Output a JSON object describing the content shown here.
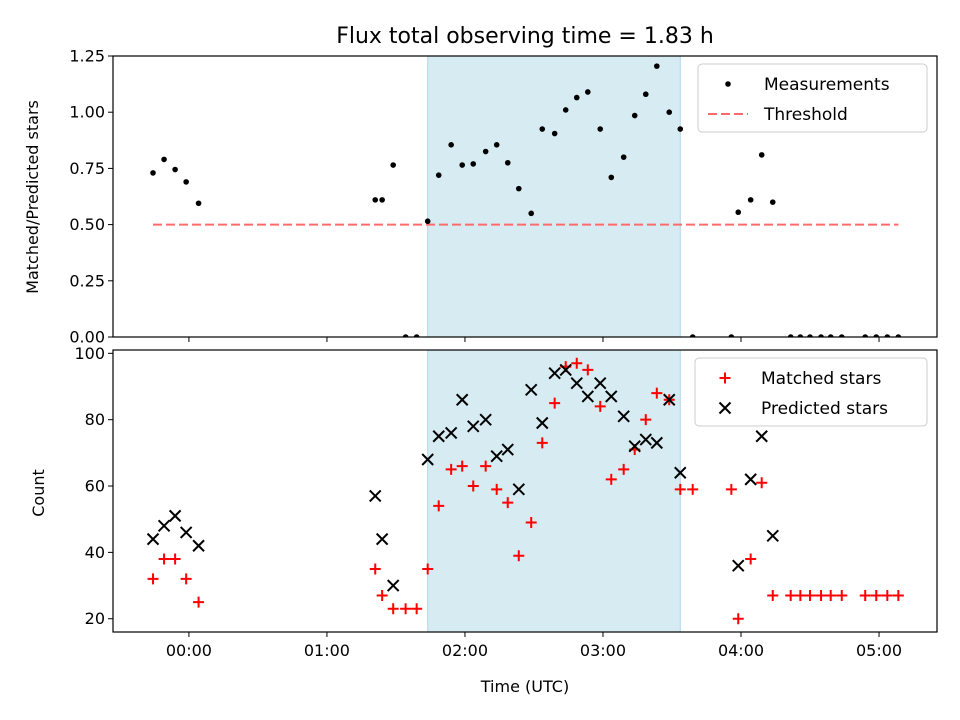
{
  "chart_data": [
    {
      "type": "scatter",
      "title": "Flux total observing time = 1.83 h",
      "xlabel": "",
      "ylabel": "Matched/Predicted stars",
      "xlim": [
        -0.55,
        5.42
      ],
      "ylim": [
        0,
        1.25
      ],
      "yticks": [
        0,
        0.25,
        0.5,
        0.75,
        1.0,
        1.25
      ],
      "ytick_labels": [
        "0.00",
        "0.25",
        "0.50",
        "0.75",
        "1.00",
        "1.25"
      ],
      "xticks": [
        0,
        1,
        2,
        3,
        4,
        5
      ],
      "shaded_region": {
        "x0": 1.73,
        "x1": 3.56,
        "color": "#add8e6"
      },
      "threshold": {
        "y": 0.5,
        "x0": -0.26,
        "x1": 5.14,
        "color": "#ff6b6b"
      },
      "legend": [
        "Measurements",
        "Threshold"
      ],
      "legend_position": "top-right",
      "series": [
        {
          "name": "Measurements",
          "x": [
            -0.26,
            -0.18,
            -0.1,
            -0.02,
            0.07,
            1.35,
            1.4,
            1.48,
            1.57,
            1.65,
            1.73,
            1.81,
            1.9,
            1.98,
            2.06,
            2.15,
            2.23,
            2.31,
            2.39,
            2.48,
            2.56,
            2.65,
            2.73,
            2.81,
            2.89,
            2.98,
            3.06,
            3.15,
            3.23,
            3.31,
            3.39,
            3.48,
            3.56,
            3.65,
            3.93,
            3.98,
            4.07,
            4.15,
            4.23,
            4.36,
            4.43,
            4.5,
            4.58,
            4.65,
            4.73,
            4.9,
            4.98,
            5.06,
            5.14
          ],
          "y": [
            0.73,
            0.79,
            0.745,
            0.69,
            0.595,
            0.61,
            0.61,
            0.765,
            0.0,
            0.0,
            0.515,
            0.72,
            0.855,
            0.765,
            0.77,
            0.825,
            0.855,
            0.775,
            0.66,
            0.55,
            0.925,
            0.905,
            1.01,
            1.065,
            1.09,
            0.925,
            0.71,
            0.8,
            0.985,
            1.08,
            1.205,
            1.0,
            0.925,
            0.0,
            0.0,
            0.555,
            0.61,
            0.81,
            0.6,
            0.0,
            0.0,
            0.0,
            0.0,
            0.0,
            0.0,
            0.0,
            0.0,
            0.0,
            0.0
          ]
        }
      ]
    },
    {
      "type": "scatter",
      "title": "",
      "xlabel": "Time (UTC)",
      "ylabel": "Count",
      "xlim": [
        -0.55,
        5.42
      ],
      "ylim": [
        16,
        101
      ],
      "yticks": [
        20,
        40,
        60,
        80,
        100
      ],
      "ytick_labels": [
        "20",
        "40",
        "60",
        "80",
        "100"
      ],
      "xticks": [
        0,
        1,
        2,
        3,
        4,
        5
      ],
      "xtick_labels": [
        "00:00",
        "01:00",
        "02:00",
        "03:00",
        "04:00",
        "05:00"
      ],
      "shaded_region": {
        "x0": 1.73,
        "x1": 3.56,
        "color": "#add8e6"
      },
      "legend": [
        "Matched stars",
        "Predicted stars"
      ],
      "legend_position": "top-right",
      "series": [
        {
          "name": "Matched stars",
          "color": "#ff0000",
          "x": [
            -0.26,
            -0.18,
            -0.1,
            -0.02,
            0.07,
            1.35,
            1.4,
            1.48,
            1.57,
            1.65,
            1.73,
            1.81,
            1.9,
            1.98,
            2.06,
            2.15,
            2.23,
            2.31,
            2.39,
            2.48,
            2.56,
            2.65,
            2.73,
            2.81,
            2.89,
            2.98,
            3.06,
            3.15,
            3.23,
            3.31,
            3.39,
            3.48,
            3.56,
            3.65,
            3.93,
            3.98,
            4.07,
            4.15,
            4.23,
            4.36,
            4.43,
            4.5,
            4.58,
            4.65,
            4.73,
            4.9,
            4.98,
            5.06,
            5.14
          ],
          "y": [
            32,
            38,
            38,
            32,
            25,
            35,
            27,
            23,
            23,
            23,
            35,
            54,
            65,
            66,
            60,
            66,
            59,
            55,
            39,
            49,
            73,
            85,
            96,
            97,
            95,
            84,
            62,
            65,
            71,
            80,
            88,
            86,
            59,
            59,
            59,
            20,
            38,
            61,
            27,
            27,
            27,
            27,
            27,
            27,
            27,
            27,
            27,
            27,
            27
          ]
        },
        {
          "name": "Predicted stars",
          "color": "#000000",
          "x": [
            -0.26,
            -0.18,
            -0.1,
            -0.02,
            0.07,
            1.35,
            1.4,
            1.48,
            1.73,
            1.81,
            1.9,
            1.98,
            2.06,
            2.15,
            2.23,
            2.31,
            2.39,
            2.48,
            2.56,
            2.65,
            2.73,
            2.81,
            2.89,
            2.98,
            3.06,
            3.15,
            3.23,
            3.31,
            3.39,
            3.48,
            3.56,
            3.98,
            4.07,
            4.15,
            4.23
          ],
          "y": [
            44,
            48,
            51,
            46,
            42,
            57,
            44,
            30,
            68,
            75,
            76,
            86,
            78,
            80,
            69,
            71,
            59,
            89,
            79,
            94,
            95,
            91,
            87,
            91,
            87,
            81,
            72,
            74,
            73,
            86,
            64,
            36,
            62,
            75,
            45
          ]
        }
      ]
    }
  ]
}
